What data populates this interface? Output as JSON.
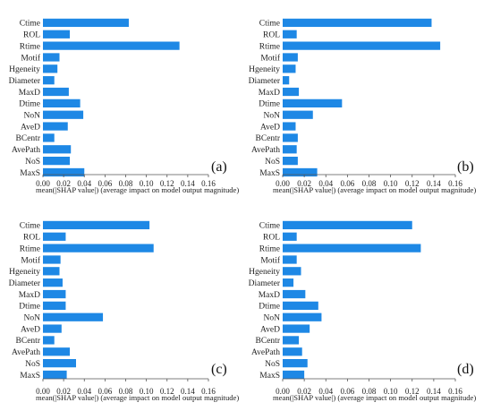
{
  "chart_data": [
    {
      "type": "bar",
      "orientation": "horizontal",
      "panel_label": "(a)",
      "categories": [
        "Ctime",
        "ROL",
        "Rtime",
        "Motif",
        "Hgeneity",
        "Diameter",
        "MaxD",
        "Dtime",
        "NoN",
        "AveD",
        "BCentr",
        "AvePath",
        "NoS",
        "MaxS"
      ],
      "values": [
        0.083,
        0.026,
        0.132,
        0.016,
        0.014,
        0.011,
        0.025,
        0.036,
        0.039,
        0.024,
        0.011,
        0.027,
        0.026,
        0.04
      ],
      "xlabel": "mean(|SHAP value|) (average impact on model output magnitude)",
      "xticks": [
        "0.00",
        "0.02",
        "0.04",
        "0.06",
        "0.08",
        "0.10",
        "0.12",
        "0.14",
        "0.16"
      ],
      "xlim": [
        0,
        0.16
      ]
    },
    {
      "type": "bar",
      "orientation": "horizontal",
      "panel_label": "(b)",
      "categories": [
        "Ctime",
        "ROL",
        "Rtime",
        "Motif",
        "Hgeneity",
        "Diameter",
        "MaxD",
        "Dtime",
        "NoN",
        "AveD",
        "BCentr",
        "AvePath",
        "NoS",
        "MaxS"
      ],
      "values": [
        0.138,
        0.013,
        0.146,
        0.014,
        0.012,
        0.006,
        0.015,
        0.055,
        0.028,
        0.012,
        0.014,
        0.013,
        0.014,
        0.032
      ],
      "xlabel": "mean(|SHAP value|) (average impact on model output magnitude)",
      "xticks": [
        "0.00",
        "0.02",
        "0.04",
        "0.06",
        "0.08",
        "0.10",
        "0.12",
        "0.14",
        "0.16"
      ],
      "xlim": [
        0,
        0.16
      ]
    },
    {
      "type": "bar",
      "orientation": "horizontal",
      "panel_label": "(c)",
      "categories": [
        "Ctime",
        "ROL",
        "Rtime",
        "Motif",
        "Hgeneity",
        "Diameter",
        "MaxD",
        "Dtime",
        "NoN",
        "AveD",
        "BCentr",
        "AvePath",
        "NoS",
        "MaxS"
      ],
      "values": [
        0.103,
        0.022,
        0.107,
        0.017,
        0.016,
        0.019,
        0.022,
        0.022,
        0.058,
        0.018,
        0.011,
        0.026,
        0.032,
        0.023
      ],
      "xlabel": "mean(|SHAP value|) (average impact on model output magnitude)",
      "xticks": [
        "0.00",
        "0.02",
        "0.04",
        "0.06",
        "0.08",
        "0.10",
        "0.12",
        "0.14",
        "0.16"
      ],
      "xlim": [
        0,
        0.16
      ]
    },
    {
      "type": "bar",
      "orientation": "horizontal",
      "panel_label": "(d)",
      "categories": [
        "Ctime",
        "ROL",
        "Rtime",
        "Motif",
        "Hgeneity",
        "Diameter",
        "MaxD",
        "Dtime",
        "NoN",
        "AveD",
        "BCentr",
        "AvePath",
        "NoS",
        "MaxS"
      ],
      "values": [
        0.12,
        0.013,
        0.128,
        0.013,
        0.017,
        0.01,
        0.021,
        0.033,
        0.036,
        0.025,
        0.015,
        0.018,
        0.023,
        0.02
      ],
      "xlabel": "mean(|SHAP value|) (average impact on model output magnitude)",
      "xticks": [
        "0.00",
        "0.02",
        "0.04",
        "0.06",
        "0.08",
        "0.10",
        "0.12",
        "0.14",
        "0.16"
      ],
      "xlim": [
        0,
        0.16
      ]
    }
  ],
  "colors": {
    "bar": "#1e88e5",
    "axis": "#555555",
    "text": "#222222"
  }
}
